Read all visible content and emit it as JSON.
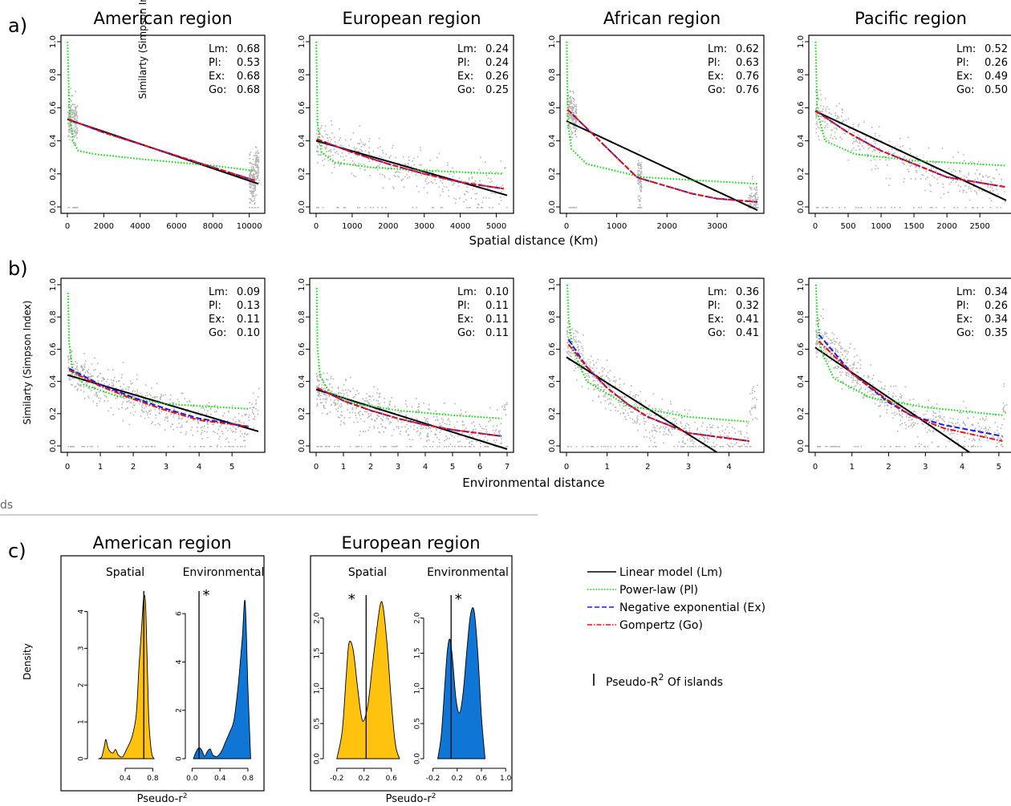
{
  "panel_labels": {
    "a": "a)",
    "b": "b)",
    "c": "c)"
  },
  "cut_text": "ds",
  "row_a": {
    "ylabel": "Similarty (Simpson Index)",
    "xlabel": "Spatial distance (Km)",
    "y_ticks": [
      "0.0",
      "0.2",
      "0.4",
      "0.6",
      "0.8",
      "1.0"
    ]
  },
  "row_b": {
    "ylabel": "Similarty (Simpson Index)",
    "xlabel": "Environmental distance",
    "y_ticks": [
      "0.0",
      "0.2",
      "0.4",
      "0.6",
      "0.8",
      "1.0"
    ]
  },
  "legend": {
    "items": [
      {
        "label": "Linear model (Lm)",
        "color": "#000000",
        "style": "solid"
      },
      {
        "label": "Power-law (Pl)",
        "color": "#00dd00",
        "style": "dotted"
      },
      {
        "label": "Negative exponential (Ex)",
        "color": "#1a1aee",
        "style": "dashed"
      },
      {
        "label": "Gompertz (Go)",
        "color": "#ee1111",
        "style": "dashdot"
      }
    ],
    "islands_base": "Pseudo-R",
    "islands_sup": "2",
    "islands_rest": " Of islands"
  },
  "row_c": {
    "ylabel": "Density",
    "xlabel_base": "Pseudo-r",
    "xlabel_sup": "2",
    "colors": {
      "spatial": "#ffc20e",
      "environmental": "#0f76d6"
    }
  },
  "chart_data": [
    {
      "type": "scatter",
      "title": "American region",
      "row": "a",
      "xlim": [
        0,
        10500
      ],
      "ylim": [
        0,
        1
      ],
      "x_ticks": [
        0,
        2000,
        4000,
        6000,
        8000,
        10000
      ],
      "stats": [
        {
          "k": "Lm:",
          "v": "0.68"
        },
        {
          "k": "Pl:",
          "v": "0.53"
        },
        {
          "k": "Ex:",
          "v": "0.68"
        },
        {
          "k": "Go:",
          "v": "0.68"
        }
      ],
      "series": [
        {
          "model": "Lm",
          "x": [
            0,
            10500
          ],
          "y": [
            0.53,
            0.14
          ]
        },
        {
          "model": "Pl",
          "x": [
            10,
            100,
            300,
            600,
            1500,
            4000,
            8000,
            10200
          ],
          "y": [
            1.0,
            0.6,
            0.4,
            0.34,
            0.32,
            0.29,
            0.25,
            0.22
          ]
        },
        {
          "model": "Ex",
          "x": [
            50,
            2000,
            4000,
            6000,
            8000,
            10300
          ],
          "y": [
            0.53,
            0.45,
            0.38,
            0.31,
            0.24,
            0.16
          ]
        },
        {
          "model": "Go",
          "x": [
            50,
            2000,
            4000,
            6000,
            8000,
            10300
          ],
          "y": [
            0.53,
            0.45,
            0.38,
            0.31,
            0.24,
            0.16
          ]
        }
      ]
    },
    {
      "type": "scatter",
      "title": "European region",
      "row": "a",
      "xlim": [
        0,
        5300
      ],
      "ylim": [
        0,
        1
      ],
      "x_ticks": [
        0,
        1000,
        2000,
        3000,
        4000,
        5000
      ],
      "stats": [
        {
          "k": "Lm:",
          "v": "0.24"
        },
        {
          "k": "Pl:",
          "v": "0.24"
        },
        {
          "k": "Ex:",
          "v": "0.26"
        },
        {
          "k": "Go:",
          "v": "0.25"
        }
      ],
      "series": [
        {
          "model": "Lm",
          "x": [
            0,
            5300
          ],
          "y": [
            0.4,
            0.07
          ]
        },
        {
          "model": "Pl",
          "x": [
            5,
            40,
            150,
            500,
            1500,
            3000,
            5200
          ],
          "y": [
            1.0,
            0.5,
            0.33,
            0.27,
            0.24,
            0.22,
            0.2
          ]
        },
        {
          "model": "Ex",
          "x": [
            20,
            1000,
            2000,
            3000,
            4000,
            5200
          ],
          "y": [
            0.41,
            0.33,
            0.26,
            0.2,
            0.15,
            0.11
          ]
        },
        {
          "model": "Go",
          "x": [
            20,
            1000,
            2000,
            3000,
            4000,
            5200
          ],
          "y": [
            0.41,
            0.33,
            0.26,
            0.2,
            0.15,
            0.11
          ]
        }
      ]
    },
    {
      "type": "scatter",
      "title": "African region",
      "row": "a",
      "xlim": [
        0,
        3800
      ],
      "ylim": [
        0,
        1
      ],
      "x_ticks": [
        0,
        1000,
        2000,
        3000
      ],
      "stats": [
        {
          "k": "Lm:",
          "v": "0.62"
        },
        {
          "k": "Pl:",
          "v": "0.63"
        },
        {
          "k": "Ex:",
          "v": "0.76"
        },
        {
          "k": "Go:",
          "v": "0.76"
        }
      ],
      "series": [
        {
          "model": "Lm",
          "x": [
            0,
            3800
          ],
          "y": [
            0.52,
            -0.02
          ]
        },
        {
          "model": "Pl",
          "x": [
            5,
            30,
            100,
            400,
            1500,
            3800
          ],
          "y": [
            1.0,
            0.5,
            0.35,
            0.26,
            0.18,
            0.14
          ]
        },
        {
          "model": "Ex",
          "x": [
            20,
            1400,
            1500,
            2500,
            3000,
            3800
          ],
          "y": [
            0.59,
            0.18,
            0.17,
            0.08,
            0.05,
            0.03
          ]
        },
        {
          "model": "Go",
          "x": [
            20,
            1400,
            1500,
            2500,
            3000,
            3800
          ],
          "y": [
            0.59,
            0.18,
            0.17,
            0.08,
            0.05,
            0.03
          ]
        }
      ]
    },
    {
      "type": "scatter",
      "title": "Pacific region",
      "row": "a",
      "xlim": [
        0,
        2900
      ],
      "ylim": [
        0,
        1
      ],
      "x_ticks": [
        0,
        500,
        1000,
        1500,
        2000,
        2500
      ],
      "stats": [
        {
          "k": "Lm:",
          "v": "0.52"
        },
        {
          "k": "Pl:",
          "v": "0.26"
        },
        {
          "k": "Ex:",
          "v": "0.49"
        },
        {
          "k": "Go:",
          "v": "0.50"
        }
      ],
      "series": [
        {
          "model": "Lm",
          "x": [
            0,
            2900
          ],
          "y": [
            0.58,
            0.04
          ]
        },
        {
          "model": "Pl",
          "x": [
            5,
            30,
            150,
            600,
            1500,
            2900
          ],
          "y": [
            1.0,
            0.58,
            0.4,
            0.32,
            0.28,
            0.25
          ]
        },
        {
          "model": "Ex",
          "x": [
            10,
            500,
            1000,
            1500,
            2000,
            2900
          ],
          "y": [
            0.58,
            0.45,
            0.34,
            0.26,
            0.18,
            0.12
          ]
        },
        {
          "model": "Go",
          "x": [
            10,
            500,
            1000,
            1500,
            2000,
            2900
          ],
          "y": [
            0.58,
            0.45,
            0.34,
            0.26,
            0.18,
            0.12
          ]
        }
      ]
    },
    {
      "type": "scatter",
      "row": "b",
      "xlim": [
        0,
        5.8
      ],
      "ylim": [
        0,
        1
      ],
      "x_ticks": [
        0,
        1,
        2,
        3,
        4,
        5
      ],
      "stats": [
        {
          "k": "Lm:",
          "v": "0.09"
        },
        {
          "k": "Pl:",
          "v": "0.13"
        },
        {
          "k": "Ex:",
          "v": "0.11"
        },
        {
          "k": "Go:",
          "v": "0.10"
        }
      ],
      "series": [
        {
          "model": "Lm",
          "x": [
            0,
            5.8
          ],
          "y": [
            0.44,
            0.09
          ]
        },
        {
          "model": "Pl",
          "x": [
            0.02,
            0.05,
            0.15,
            0.5,
            1.5,
            3.0,
            5.5
          ],
          "y": [
            0.95,
            0.65,
            0.48,
            0.38,
            0.31,
            0.26,
            0.23
          ]
        },
        {
          "model": "Ex",
          "x": [
            0.05,
            1,
            2,
            3,
            4,
            5.5
          ],
          "y": [
            0.48,
            0.38,
            0.3,
            0.23,
            0.17,
            0.12
          ]
        },
        {
          "model": "Go",
          "x": [
            0.05,
            1,
            2,
            3,
            4,
            5.5
          ],
          "y": [
            0.47,
            0.37,
            0.29,
            0.22,
            0.16,
            0.12
          ]
        }
      ]
    },
    {
      "type": "scatter",
      "row": "b",
      "xlim": [
        0,
        7
      ],
      "ylim": [
        0,
        1
      ],
      "x_ticks": [
        0,
        1,
        2,
        3,
        4,
        5,
        6,
        7
      ],
      "stats": [
        {
          "k": "Lm:",
          "v": "0.10"
        },
        {
          "k": "Pl:",
          "v": "0.11"
        },
        {
          "k": "Ex:",
          "v": "0.11"
        },
        {
          "k": "Go:",
          "v": "0.11"
        }
      ],
      "series": [
        {
          "model": "Lm",
          "x": [
            0,
            7
          ],
          "y": [
            0.35,
            -0.02
          ]
        },
        {
          "model": "Pl",
          "x": [
            0.02,
            0.05,
            0.15,
            0.5,
            1.5,
            3,
            5,
            6.8
          ],
          "y": [
            0.98,
            0.6,
            0.43,
            0.33,
            0.26,
            0.22,
            0.19,
            0.17
          ]
        },
        {
          "model": "Ex",
          "x": [
            0.05,
            1,
            2,
            3,
            4,
            5,
            6.8
          ],
          "y": [
            0.36,
            0.28,
            0.22,
            0.17,
            0.13,
            0.1,
            0.06
          ]
        },
        {
          "model": "Go",
          "x": [
            0.05,
            1,
            2,
            3,
            4,
            5,
            6.8
          ],
          "y": [
            0.36,
            0.28,
            0.22,
            0.17,
            0.13,
            0.1,
            0.06
          ]
        }
      ]
    },
    {
      "type": "scatter",
      "row": "b",
      "xlim": [
        0,
        4.7
      ],
      "ylim": [
        0,
        1
      ],
      "x_ticks": [
        0,
        1,
        2,
        3,
        4
      ],
      "stats": [
        {
          "k": "Lm:",
          "v": "0.36"
        },
        {
          "k": "Pl:",
          "v": "0.32"
        },
        {
          "k": "Ex:",
          "v": "0.41"
        },
        {
          "k": "Go:",
          "v": "0.41"
        }
      ],
      "series": [
        {
          "model": "Lm",
          "x": [
            0,
            3.7
          ],
          "y": [
            0.55,
            -0.04
          ]
        },
        {
          "model": "Pl",
          "x": [
            0.02,
            0.05,
            0.15,
            0.5,
            1.5,
            3,
            4.5
          ],
          "y": [
            1.0,
            0.8,
            0.6,
            0.4,
            0.25,
            0.18,
            0.15
          ]
        },
        {
          "model": "Ex",
          "x": [
            0.05,
            0.5,
            1,
            1.5,
            2,
            3,
            4.5
          ],
          "y": [
            0.66,
            0.49,
            0.36,
            0.26,
            0.18,
            0.08,
            0.03
          ]
        },
        {
          "model": "Go",
          "x": [
            0.05,
            0.5,
            1,
            1.5,
            2,
            3,
            4.5
          ],
          "y": [
            0.63,
            0.49,
            0.36,
            0.26,
            0.18,
            0.08,
            0.03
          ]
        }
      ]
    },
    {
      "type": "scatter",
      "row": "b",
      "xlim": [
        0,
        5.2
      ],
      "ylim": [
        0,
        1
      ],
      "x_ticks": [
        0,
        1,
        2,
        3,
        4,
        5
      ],
      "stats": [
        {
          "k": "Lm:",
          "v": "0.34"
        },
        {
          "k": "Pl:",
          "v": "0.26"
        },
        {
          "k": "Ex:",
          "v": "0.34"
        },
        {
          "k": "Go:",
          "v": "0.35"
        }
      ],
      "series": [
        {
          "model": "Lm",
          "x": [
            0,
            4.2
          ],
          "y": [
            0.61,
            -0.04
          ]
        },
        {
          "model": "Pl",
          "x": [
            0.02,
            0.05,
            0.15,
            0.5,
            1.5,
            3,
            5.1
          ],
          "y": [
            1.0,
            0.82,
            0.6,
            0.42,
            0.3,
            0.24,
            0.19
          ]
        },
        {
          "model": "Ex",
          "x": [
            0.1,
            1,
            2,
            2.6,
            3.5,
            5.1
          ],
          "y": [
            0.69,
            0.45,
            0.27,
            0.19,
            0.13,
            0.06
          ]
        },
        {
          "model": "Go",
          "x": [
            0.1,
            1,
            2,
            2.6,
            3.5,
            5.1
          ],
          "y": [
            0.65,
            0.45,
            0.28,
            0.19,
            0.11,
            0.03
          ]
        }
      ]
    },
    {
      "type": "area",
      "title": "American region",
      "subtitle": "Spatial",
      "row": "c",
      "xlim": [
        -0.1,
        0.9
      ],
      "ylim": [
        0,
        4.6
      ],
      "x_ticks": [
        "0.4",
        "0.8"
      ],
      "x_tick_values": [
        0.4,
        0.8
      ],
      "y_ticks": [
        "0",
        "1",
        "2",
        "3",
        "4"
      ],
      "y_tick_values": [
        0,
        1,
        2,
        3,
        4
      ],
      "islands_line": 0.67,
      "asterisk": false,
      "x": [
        0.02,
        0.06,
        0.1,
        0.12,
        0.16,
        0.22,
        0.26,
        0.3,
        0.36,
        0.42,
        0.5,
        0.56,
        0.6,
        0.64,
        0.67,
        0.7,
        0.74,
        0.78,
        0.82
      ],
      "values": [
        0,
        0.05,
        0.35,
        0.52,
        0.25,
        0.15,
        0.25,
        0.1,
        0.05,
        0.25,
        0.6,
        1.2,
        2.5,
        3.6,
        4.4,
        4.0,
        1.2,
        0.2,
        0
      ]
    },
    {
      "type": "area",
      "subtitle": "Environmental",
      "row": "c",
      "xlim": [
        -0.05,
        0.95
      ],
      "ylim": [
        0,
        7
      ],
      "x_ticks": [
        "0.0",
        "0.4",
        "0.8"
      ],
      "x_tick_values": [
        0.0,
        0.4,
        0.8
      ],
      "y_ticks": [
        "0",
        "2",
        "4",
        "6"
      ],
      "y_tick_values": [
        0,
        2,
        4,
        6
      ],
      "islands_line": 0.1,
      "asterisk": true,
      "x": [
        0.02,
        0.06,
        0.1,
        0.14,
        0.18,
        0.22,
        0.26,
        0.3,
        0.36,
        0.42,
        0.48,
        0.54,
        0.6,
        0.66,
        0.72,
        0.76,
        0.8,
        0.84
      ],
      "values": [
        0,
        0.3,
        0.45,
        0.35,
        0.1,
        0.3,
        0.4,
        0.15,
        0.1,
        0.3,
        0.7,
        1.1,
        1.6,
        3.0,
        5.0,
        6.5,
        3.0,
        0
      ]
    },
    {
      "type": "area",
      "title": "European region",
      "subtitle": "Spatial",
      "row": "c",
      "xlim": [
        -0.35,
        0.85
      ],
      "ylim": [
        0,
        2.35
      ],
      "x_ticks": [
        "-0.2",
        "0.2",
        "0.6"
      ],
      "x_tick_values": [
        -0.2,
        0.2,
        0.6
      ],
      "y_ticks": [
        "0.0",
        "0.5",
        "1.0",
        "1.5",
        "2.0"
      ],
      "y_tick_values": [
        0,
        0.5,
        1,
        1.5,
        2
      ],
      "islands_line": 0.23,
      "asterisk": true,
      "x": [
        -0.2,
        -0.12,
        -0.06,
        -0.02,
        0.04,
        0.1,
        0.16,
        0.2,
        0.26,
        0.32,
        0.38,
        0.44,
        0.48,
        0.54,
        0.6,
        0.66,
        0.72
      ],
      "values": [
        0,
        0.4,
        1.2,
        1.65,
        1.55,
        1.05,
        0.6,
        0.55,
        0.8,
        1.3,
        1.8,
        2.2,
        2.15,
        1.6,
        0.8,
        0.2,
        0
      ]
    },
    {
      "type": "area",
      "subtitle": "Environmental",
      "row": "c",
      "xlim": [
        -0.3,
        1.05
      ],
      "ylim": [
        0,
        2.35
      ],
      "x_ticks": [
        "-0.2",
        "0.2",
        "0.6",
        "1.0"
      ],
      "x_tick_values": [
        -0.2,
        0.2,
        0.6,
        1.0
      ],
      "y_ticks": [
        "0.0",
        "0.5",
        "1.0",
        "1.5",
        "2.0"
      ],
      "y_tick_values": [
        0,
        0.5,
        1,
        1.5,
        2
      ],
      "islands_line": 0.1,
      "asterisk": true,
      "x": [
        -0.12,
        -0.06,
        0.0,
        0.04,
        0.08,
        0.12,
        0.18,
        0.24,
        0.3,
        0.36,
        0.42,
        0.48,
        0.54,
        0.6,
        0.66
      ],
      "values": [
        0,
        0.35,
        1.1,
        1.55,
        1.7,
        1.45,
        0.85,
        0.65,
        0.95,
        1.55,
        2.05,
        2.1,
        1.5,
        0.6,
        0
      ]
    }
  ]
}
